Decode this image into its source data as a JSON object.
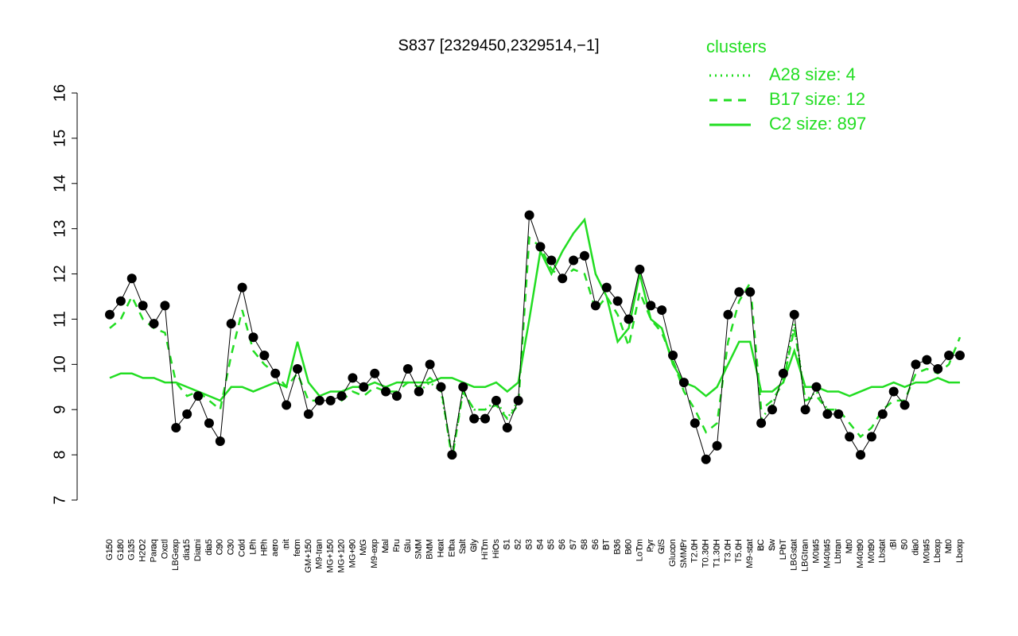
{
  "chart_data": {
    "type": "line",
    "title": "S837 [2329450,2329514,−1]",
    "legend_title": "clusters",
    "legend_color": "#22dd22",
    "categories": [
      "G150",
      "G180",
      "G135",
      "H2O2",
      "Paraq",
      "Oxctl",
      "LBGexp",
      "dia15",
      "Diami",
      "dia5",
      "C90",
      "C30",
      "Cold",
      "LPh",
      "HPh",
      "aero",
      "nit",
      "ferm",
      "GM+150",
      "M9-tran",
      "MG+150",
      "MG+120",
      "MG+90",
      "M/G",
      "M9-exp",
      "Mal",
      "Fru",
      "Glu",
      "SMM",
      "BMM",
      "Heat",
      "Etha",
      "Salt",
      "Gly",
      "HiTm",
      "HiOs",
      "S1",
      "S2",
      "S3",
      "S4",
      "S5",
      "S6",
      "S7",
      "S8",
      "S6",
      "BT",
      "B36",
      "B60",
      "LoTm",
      "Pyr",
      "G/S",
      "Glucon",
      "SMMPr",
      "T2.0H",
      "T0.30H",
      "T1.30H",
      "T3.0H",
      "T5.0H",
      "M9-stat",
      "BC",
      "Sw",
      "LPhT",
      "LBGstat",
      "LBGtran",
      "M0t45",
      "M40t45",
      "Lbtran",
      "Mt0",
      "M40t90",
      "M0t90",
      "Lbstat",
      "BI",
      "S0",
      "dia0",
      "M0t45",
      "Lbexp",
      "Mt0",
      "Lbexp"
    ],
    "points": {
      "color": "#000000",
      "values": [
        11.1,
        11.4,
        11.9,
        11.3,
        10.9,
        11.3,
        8.6,
        8.9,
        9.3,
        8.7,
        8.3,
        10.9,
        11.7,
        10.6,
        10.2,
        9.8,
        9.1,
        9.9,
        8.9,
        9.2,
        9.2,
        9.3,
        9.7,
        9.5,
        9.8,
        9.4,
        9.3,
        9.9,
        9.4,
        10.0,
        9.5,
        8.0,
        9.5,
        8.8,
        8.8,
        9.2,
        8.6,
        9.2,
        13.3,
        12.6,
        12.3,
        11.9,
        12.3,
        12.4,
        11.3,
        11.7,
        11.4,
        11.0,
        12.1,
        11.3,
        11.2,
        10.2,
        9.6,
        8.7,
        7.9,
        8.2,
        11.1,
        11.6,
        11.6,
        8.7,
        9.0,
        9.8,
        11.1,
        9.0,
        9.5,
        8.9,
        8.9,
        8.4,
        8.0,
        8.4,
        8.9,
        9.4,
        9.1,
        10.0,
        10.1,
        9.9,
        10.2,
        10.2
      ]
    },
    "series": [
      {
        "name": "A28 size: 4",
        "color": "#22dd22",
        "dash": "dotted",
        "values": [
          null,
          null,
          null,
          null,
          null,
          null,
          null,
          null,
          null,
          null,
          null,
          null,
          null,
          null,
          null,
          null,
          null,
          null,
          null,
          null,
          null,
          null,
          null,
          null,
          null,
          null,
          null,
          null,
          9.4,
          9.6,
          9.4,
          8.0,
          9.4,
          9.0,
          9.0,
          9.2,
          8.8,
          9.2,
          null,
          null,
          null,
          null,
          null,
          null,
          null,
          null,
          null,
          null,
          null,
          null,
          null,
          null,
          null,
          null,
          null,
          null,
          null,
          null,
          null,
          8.8,
          9.1,
          9.7,
          10.9,
          9.2,
          9.4,
          9.0,
          9.0,
          null,
          null,
          null,
          null,
          null,
          null,
          null,
          null,
          null,
          null,
          null
        ]
      },
      {
        "name": "B17 size: 12",
        "color": "#22dd22",
        "dash": "dashed",
        "values": [
          10.8,
          11.0,
          11.5,
          11.0,
          10.8,
          10.7,
          9.6,
          9.3,
          9.4,
          9.2,
          9.0,
          10.2,
          11.2,
          10.3,
          10.0,
          9.8,
          9.5,
          9.8,
          9.2,
          9.2,
          9.2,
          9.2,
          9.4,
          9.3,
          9.5,
          9.4,
          9.4,
          9.6,
          9.5,
          9.7,
          9.5,
          7.9,
          9.4,
          9.0,
          9.0,
          9.1,
          8.8,
          9.1,
          12.8,
          12.6,
          12.1,
          11.9,
          12.1,
          12.0,
          11.2,
          11.5,
          11.1,
          10.4,
          11.6,
          11.0,
          10.7,
          10.1,
          9.4,
          9.0,
          8.5,
          8.7,
          10.5,
          11.4,
          11.8,
          9.0,
          9.2,
          9.6,
          10.8,
          9.2,
          9.3,
          9.0,
          9.0,
          8.7,
          8.4,
          8.6,
          9.0,
          9.2,
          9.2,
          9.8,
          9.9,
          9.8,
          10.0,
          10.6
        ]
      },
      {
        "name": "C2 size: 897",
        "color": "#22dd22",
        "dash": "solid",
        "values": [
          9.7,
          9.8,
          9.8,
          9.7,
          9.7,
          9.6,
          9.6,
          9.5,
          9.4,
          9.3,
          9.2,
          9.5,
          9.5,
          9.4,
          9.5,
          9.6,
          9.5,
          10.5,
          9.6,
          9.3,
          9.4,
          9.4,
          9.5,
          9.5,
          9.6,
          9.5,
          9.6,
          9.6,
          9.6,
          9.6,
          9.7,
          9.7,
          9.6,
          9.5,
          9.5,
          9.6,
          9.4,
          9.6,
          11.0,
          12.5,
          12.0,
          12.5,
          12.9,
          13.2,
          12.0,
          11.5,
          10.5,
          10.8,
          12.0,
          11.0,
          10.8,
          10.0,
          9.6,
          9.5,
          9.3,
          9.5,
          10.0,
          10.5,
          10.5,
          9.4,
          9.4,
          9.6,
          10.3,
          9.5,
          9.5,
          9.4,
          9.4,
          9.3,
          9.4,
          9.5,
          9.5,
          9.6,
          9.5,
          9.6,
          9.6,
          9.7,
          9.6,
          9.6
        ]
      }
    ],
    "ylim": [
      7,
      16
    ],
    "yticks": [
      7,
      8,
      9,
      10,
      11,
      12,
      13,
      14,
      15,
      16
    ]
  }
}
